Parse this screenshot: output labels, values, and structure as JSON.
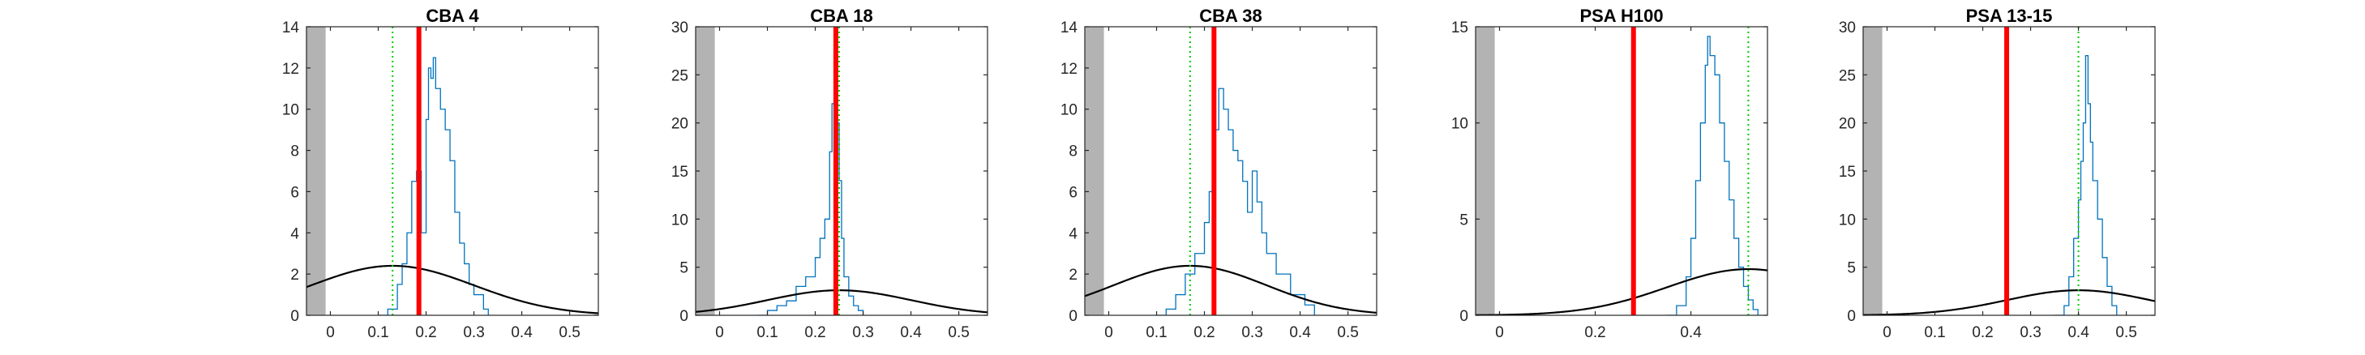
{
  "chart_data": [
    {
      "type": "histogram",
      "title": "CBA 4",
      "xlim": [
        -0.05,
        0.56
      ],
      "ylim": [
        0,
        14
      ],
      "xticks": [
        0,
        0.1,
        0.2,
        0.3,
        0.4,
        0.5
      ],
      "yticks": [
        0,
        2,
        4,
        6,
        8,
        10,
        12,
        14
      ],
      "xtick_labels": [
        "0",
        "0.1",
        "0.2",
        "0.3",
        "0.4",
        "0.5"
      ],
      "ytick_labels": [
        "0",
        "2",
        "4",
        "6",
        "8",
        "10",
        "12",
        "14"
      ],
      "shaded_region": [
        -0.05,
        -0.01
      ],
      "histogram": {
        "x": [
          0.1,
          0.12,
          0.14,
          0.15,
          0.16,
          0.17,
          0.18,
          0.19,
          0.2,
          0.205,
          0.21,
          0.215,
          0.22,
          0.23,
          0.24,
          0.25,
          0.26,
          0.27,
          0.28,
          0.29,
          0.3,
          0.32,
          0.33
        ],
        "y": [
          0,
          0.3,
          1.5,
          2.5,
          4,
          6.5,
          7,
          4,
          9.5,
          12,
          11.5,
          12.5,
          11,
          10,
          9,
          7.5,
          5,
          3.5,
          2.5,
          1.5,
          1,
          0.3,
          0
        ]
      },
      "normal_curve": {
        "mean": 0.13,
        "sd": 0.17,
        "peak": 2.4
      },
      "observed_line": 0.185,
      "reference_line": 0.13
    },
    {
      "type": "histogram",
      "title": "CBA 18",
      "xlim": [
        -0.05,
        0.56
      ],
      "ylim": [
        0,
        30
      ],
      "xticks": [
        0,
        0.1,
        0.2,
        0.3,
        0.4,
        0.5
      ],
      "yticks": [
        0,
        5,
        10,
        15,
        20,
        25,
        30
      ],
      "xtick_labels": [
        "0",
        "0.1",
        "0.2",
        "0.3",
        "0.4",
        "0.5"
      ],
      "ytick_labels": [
        "0",
        "5",
        "10",
        "15",
        "20",
        "25",
        "30"
      ],
      "shaded_region": [
        -0.05,
        -0.01
      ],
      "histogram": {
        "x": [
          0.08,
          0.1,
          0.12,
          0.14,
          0.16,
          0.18,
          0.2,
          0.21,
          0.22,
          0.23,
          0.235,
          0.24,
          0.245,
          0.25,
          0.255,
          0.26,
          0.27,
          0.28,
          0.29,
          0.3
        ],
        "y": [
          0,
          0.5,
          1,
          1.5,
          3,
          4,
          6,
          8,
          10,
          17,
          22,
          26.5,
          20,
          14,
          8,
          4,
          2,
          1,
          0.5,
          0
        ]
      },
      "normal_curve": {
        "mean": 0.25,
        "sd": 0.15,
        "peak": 2.6
      },
      "observed_line": 0.243,
      "reference_line": 0.25
    },
    {
      "type": "histogram",
      "title": "CBA 38",
      "xlim": [
        -0.05,
        0.56
      ],
      "ylim": [
        0,
        14
      ],
      "xticks": [
        0,
        0.1,
        0.2,
        0.3,
        0.4,
        0.5
      ],
      "yticks": [
        0,
        2,
        4,
        6,
        8,
        10,
        12,
        14
      ],
      "xtick_labels": [
        "0",
        "0.1",
        "0.2",
        "0.3",
        "0.4",
        "0.5"
      ],
      "ytick_labels": [
        "0",
        "2",
        "4",
        "6",
        "8",
        "10",
        "12",
        "14"
      ],
      "shaded_region": [
        -0.05,
        -0.01
      ],
      "histogram": {
        "x": [
          0.1,
          0.12,
          0.14,
          0.16,
          0.18,
          0.2,
          0.21,
          0.22,
          0.23,
          0.24,
          0.25,
          0.26,
          0.27,
          0.28,
          0.29,
          0.3,
          0.31,
          0.32,
          0.33,
          0.35,
          0.38,
          0.41,
          0.43
        ],
        "y": [
          0,
          0.3,
          1,
          2,
          3,
          4.5,
          6,
          9,
          11,
          10,
          9,
          8,
          7.5,
          6.5,
          5,
          7,
          5.5,
          4,
          3,
          2,
          1,
          0.5,
          0
        ]
      },
      "normal_curve": {
        "mean": 0.17,
        "sd": 0.16,
        "peak": 2.4
      },
      "observed_line": 0.22,
      "reference_line": 0.17
    },
    {
      "type": "histogram",
      "title": "PSA H100",
      "xlim": [
        -0.05,
        0.56
      ],
      "ylim": [
        0,
        15
      ],
      "xticks": [
        0,
        0.2,
        0.4
      ],
      "yticks": [
        0,
        5,
        10,
        15
      ],
      "xtick_labels": [
        "0",
        "0.2",
        "0.4"
      ],
      "ytick_labels": [
        "0",
        "5",
        "10",
        "15"
      ],
      "shaded_region": [
        -0.05,
        -0.01
      ],
      "histogram": {
        "x": [
          0.35,
          0.37,
          0.39,
          0.4,
          0.41,
          0.42,
          0.43,
          0.435,
          0.44,
          0.45,
          0.46,
          0.47,
          0.48,
          0.49,
          0.5,
          0.51,
          0.52,
          0.53,
          0.54
        ],
        "y": [
          0,
          0.5,
          2,
          4,
          7,
          10,
          13,
          14.5,
          13.5,
          12.5,
          10,
          8,
          6,
          4,
          2.5,
          1.5,
          0.8,
          0.3,
          0
        ]
      },
      "normal_curve": {
        "mean": 0.52,
        "sd": 0.17,
        "peak": 2.4
      },
      "observed_line": 0.28,
      "reference_line": 0.52
    },
    {
      "type": "histogram",
      "title": "PSA 13-15",
      "xlim": [
        -0.05,
        0.56
      ],
      "ylim": [
        0,
        30
      ],
      "xticks": [
        0,
        0.1,
        0.2,
        0.3,
        0.4,
        0.5
      ],
      "yticks": [
        0,
        5,
        10,
        15,
        20,
        25,
        30
      ],
      "xtick_labels": [
        "0",
        "0.1",
        "0.2",
        "0.3",
        "0.4",
        "0.5"
      ],
      "ytick_labels": [
        "0",
        "5",
        "10",
        "15",
        "20",
        "25",
        "30"
      ],
      "shaded_region": [
        -0.05,
        -0.01
      ],
      "histogram": {
        "x": [
          0.35,
          0.37,
          0.38,
          0.39,
          0.4,
          0.405,
          0.41,
          0.415,
          0.42,
          0.425,
          0.43,
          0.44,
          0.45,
          0.46,
          0.47,
          0.48
        ],
        "y": [
          0,
          1,
          4,
          8,
          12,
          16,
          20,
          27,
          22,
          18,
          14,
          10,
          6,
          3,
          1,
          0
        ]
      },
      "normal_curve": {
        "mean": 0.4,
        "sd": 0.15,
        "peak": 2.6
      },
      "observed_line": 0.25,
      "reference_line": 0.4
    }
  ],
  "colors": {
    "histogram": "#0072bd",
    "observed_line": "#ff0000",
    "reference_line": "#00cc00",
    "normal_curve": "#000000",
    "shaded_region": "#b3b3b3",
    "axes": "#262626"
  }
}
